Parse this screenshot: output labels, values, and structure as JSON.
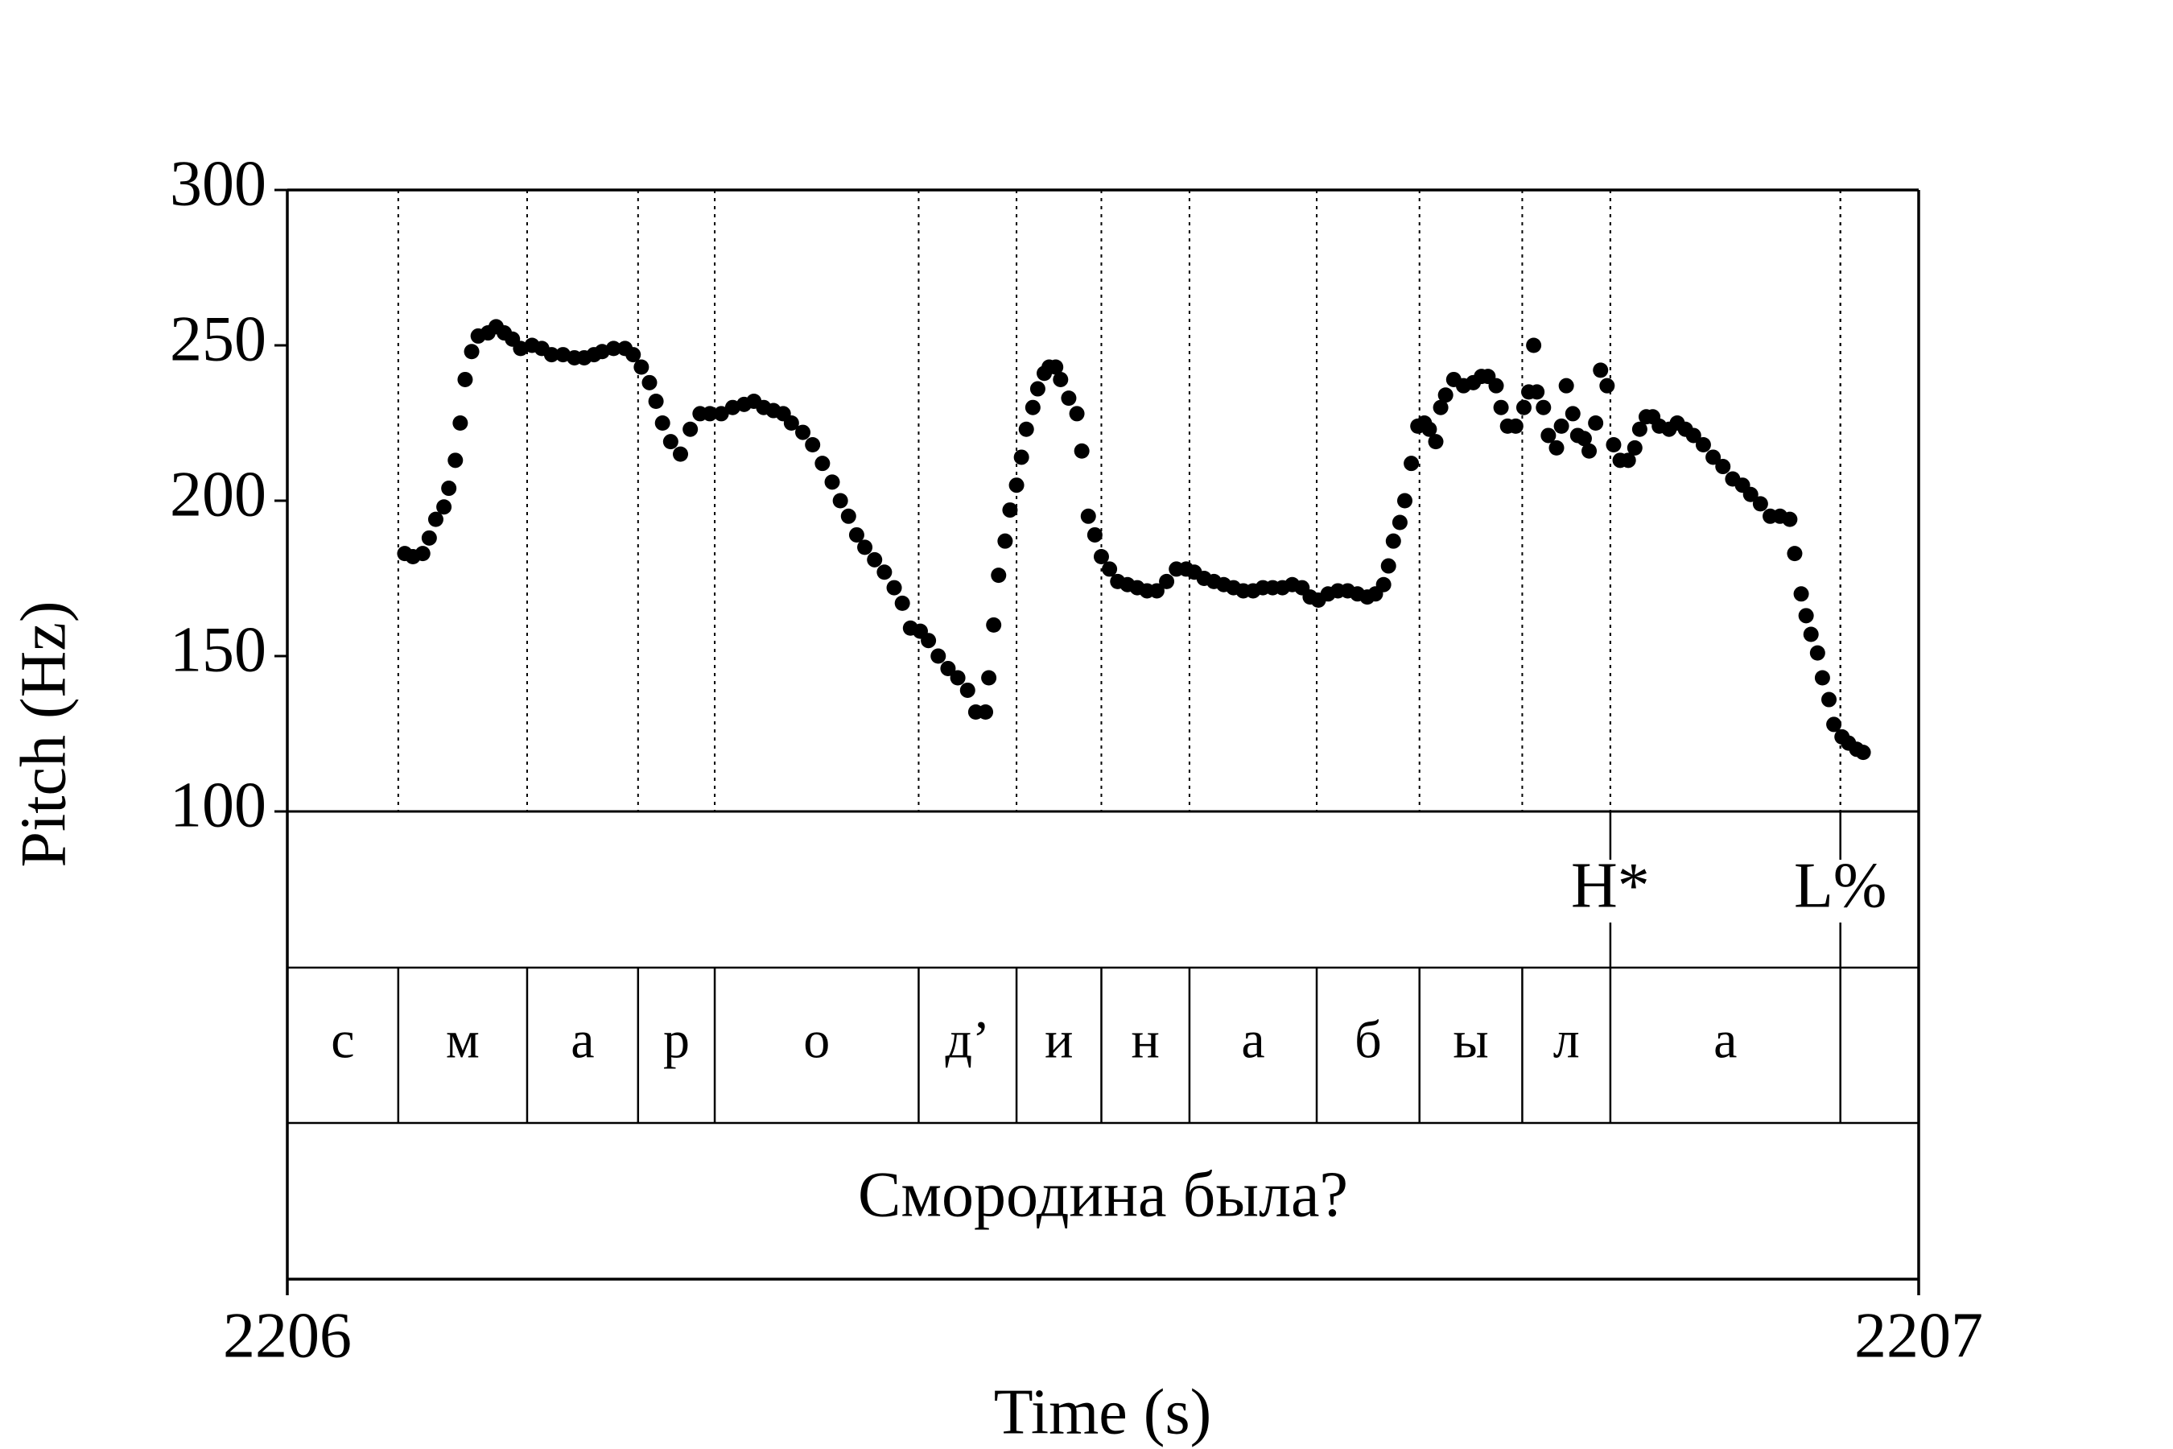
{
  "chart_data": {
    "type": "scatter",
    "y_label": "Pitch (Hz)",
    "x_label": "Time (s)",
    "xlim": [
      2206,
      2207
    ],
    "xticks": [
      2206,
      2207
    ],
    "ylim": [
      100,
      300
    ],
    "yticks": [
      100,
      150,
      200,
      250,
      300
    ],
    "color": "#000000",
    "x": [
      2206.072,
      2206.077,
      2206.083,
      2206.087,
      2206.091,
      2206.096,
      2206.099,
      2206.103,
      2206.106,
      2206.109,
      2206.113,
      2206.117,
      2206.123,
      2206.128,
      2206.133,
      2206.138,
      2206.143,
      2206.15,
      2206.156,
      2206.162,
      2206.169,
      2206.176,
      2206.182,
      2206.188,
      2206.193,
      2206.2,
      2206.207,
      2206.212,
      2206.217,
      2206.222,
      2206.226,
      2206.23,
      2206.235,
      2206.241,
      2206.247,
      2206.253,
      2206.259,
      2206.266,
      2206.273,
      2206.28,
      2206.286,
      2206.292,
      2206.298,
      2206.304,
      2206.309,
      2206.316,
      2206.322,
      2206.328,
      2206.334,
      2206.339,
      2206.344,
      2206.349,
      2206.354,
      2206.36,
      2206.366,
      2206.372,
      2206.377,
      2206.382,
      2206.388,
      2206.393,
      2206.399,
      2206.405,
      2206.411,
      2206.417,
      2206.422,
      2206.428,
      2206.43,
      2206.433,
      2206.436,
      2206.44,
      2206.443,
      2206.447,
      2206.45,
      2206.453,
      2206.457,
      2206.46,
      2206.464,
      2206.467,
      2206.471,
      2206.474,
      2206.479,
      2206.484,
      2206.487,
      2206.491,
      2206.495,
      2206.499,
      2206.504,
      2206.509,
      2206.515,
      2206.521,
      2206.527,
      2206.533,
      2206.539,
      2206.545,
      2206.551,
      2206.556,
      2206.562,
      2206.568,
      2206.574,
      2206.58,
      2206.586,
      2206.592,
      2206.598,
      2206.604,
      2206.61,
      2206.616,
      2206.622,
      2206.627,
      2206.632,
      2206.638,
      2206.644,
      2206.65,
      2206.656,
      2206.662,
      2206.667,
      2206.672,
      2206.675,
      2206.678,
      2206.682,
      2206.685,
      2206.689,
      2206.693,
      2206.697,
      2206.7,
      2206.704,
      2206.707,
      2206.71,
      2206.715,
      2206.721,
      2206.727,
      2206.732,
      2206.736,
      2206.741,
      2206.744,
      2206.748,
      2206.753,
      2206.758,
      2206.761,
      2206.764,
      2206.766,
      2206.77,
      2206.773,
      2206.778,
      2206.781,
      2206.784,
      2206.788,
      2206.791,
      2206.795,
      2206.798,
      2206.802,
      2206.805,
      2206.809,
      2206.813,
      2206.817,
      2206.822,
      2206.826,
      2206.829,
      2206.833,
      2206.837,
      2206.841,
      2206.847,
      2206.852,
      2206.857,
      2206.862,
      2206.868,
      2206.874,
      2206.88,
      2206.886,
      2206.892,
      2206.897,
      2206.903,
      2206.909,
      2206.915,
      2206.921,
      2206.924,
      2206.928,
      2206.931,
      2206.934,
      2206.938,
      2206.941,
      2206.945,
      2206.948,
      2206.953,
      2206.957,
      2206.962,
      2206.966
    ],
    "values": [
      183,
      182,
      183,
      188,
      194,
      198,
      204,
      213,
      225,
      239,
      248,
      253,
      254,
      256,
      254,
      252,
      249,
      250,
      249,
      247,
      247,
      246,
      246,
      247,
      248,
      249,
      249,
      247,
      243,
      238,
      232,
      225,
      219,
      215,
      223,
      228,
      228,
      228,
      230,
      231,
      232,
      230,
      229,
      228,
      225,
      222,
      218,
      212,
      206,
      200,
      195,
      189,
      185,
      181,
      177,
      172,
      167,
      159,
      158,
      155,
      150,
      146,
      143,
      139,
      132,
      132,
      143,
      160,
      176,
      187,
      197,
      205,
      214,
      223,
      230,
      236,
      241,
      243,
      243,
      239,
      233,
      228,
      216,
      195,
      189,
      182,
      178,
      174,
      173,
      172,
      171,
      171,
      174,
      178,
      178,
      177,
      175,
      174,
      173,
      172,
      171,
      171,
      172,
      172,
      172,
      173,
      172,
      169,
      168,
      170,
      171,
      171,
      170,
      169,
      170,
      173,
      179,
      187,
      193,
      200,
      212,
      224,
      225,
      223,
      219,
      230,
      234,
      239,
      237,
      238,
      240,
      240,
      237,
      230,
      224,
      224,
      230,
      235,
      250,
      235,
      230,
      221,
      217,
      224,
      237,
      228,
      221,
      220,
      216,
      225,
      242,
      237,
      218,
      213,
      213,
      217,
      223,
      227,
      227,
      224,
      223,
      225,
      223,
      221,
      218,
      214,
      211,
      207,
      205,
      202,
      199,
      195,
      195,
      194,
      183,
      170,
      163,
      157,
      151,
      143,
      136,
      128,
      124,
      122,
      120,
      119
    ],
    "tiers": [
      {
        "points": [
          {
            "time": 2206.811,
            "label": "H*"
          },
          {
            "time": 2206.952,
            "label": "L%"
          }
        ]
      },
      {
        "boundaries": [
          2206.068,
          2206.147,
          2206.215,
          2206.262,
          2206.387,
          2206.447,
          2206.499,
          2206.553,
          2206.631,
          2206.694,
          2206.757,
          2206.811,
          2206.952
        ],
        "labels": [
          "с",
          "м",
          "а",
          "р",
          "о",
          "д’",
          "и",
          "н",
          "а",
          "б",
          "ы",
          "л",
          "а"
        ]
      },
      {
        "label": "Смородина была?"
      }
    ]
  }
}
